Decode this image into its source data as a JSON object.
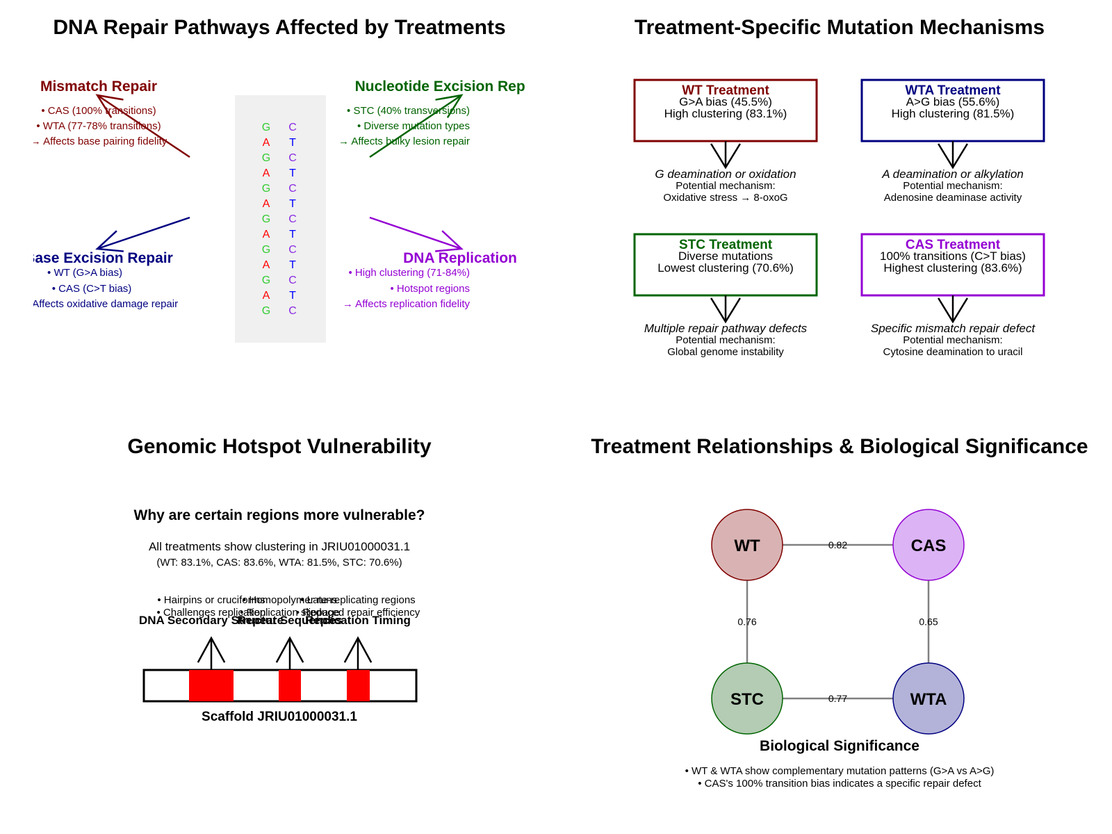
{
  "panel_tl": {
    "title": "DNA Repair Pathways Affected by Treatments",
    "pathways": [
      {
        "name": "Mismatch Repair",
        "color": "#800000",
        "lines": [
          "• CAS (100% transitions)",
          "• WTA (77-78% transitions)",
          "→ Affects base pairing fidelity"
        ]
      },
      {
        "name": "Nucleotide Excision Repair",
        "color": "#006400",
        "lines": [
          "• STC (40% transversions)",
          "• Diverse mutation types",
          "→ Affects bulky lesion repair"
        ]
      },
      {
        "name": "Base Excision Repair",
        "color": "#000080",
        "lines": [
          "• WT (G>A bias)",
          "• CAS (C>T bias)",
          "→ Affects oxidative damage repair"
        ]
      },
      {
        "name": "DNA Replication",
        "color": "#9400D3",
        "lines": [
          "• High clustering (71-84%)",
          "• Hotspot regions",
          "→ Affects replication fidelity"
        ]
      }
    ],
    "dna_left": [
      "G",
      "A",
      "G",
      "A",
      "G",
      "A",
      "G",
      "A",
      "G",
      "A",
      "G",
      "A",
      "G"
    ],
    "dna_right": [
      "C",
      "T",
      "C",
      "T",
      "C",
      "T",
      "C",
      "T",
      "C",
      "T",
      "C",
      "T",
      "C"
    ],
    "colors": {
      "G": "#33cc33",
      "A": "#ff0000",
      "C": "#8a2be2",
      "T": "#0000ff",
      "panel_bg": "#f0f0f0"
    }
  },
  "panel_tr": {
    "title": "Treatment-Specific Mutation Mechanisms",
    "treatments": [
      {
        "name": "WT Treatment",
        "color": "#800000",
        "lines": [
          "G>A bias (45.5%)",
          "High clustering (83.1%)"
        ],
        "mech_title": "G deamination or oxidation",
        "mech_lines": [
          "Potential mechanism:",
          "Oxidative stress → 8-oxoG"
        ]
      },
      {
        "name": "WTA Treatment",
        "color": "#000080",
        "lines": [
          "A>G bias (55.6%)",
          "High clustering (81.5%)"
        ],
        "mech_title": "A deamination or alkylation",
        "mech_lines": [
          "Potential mechanism:",
          "Adenosine deaminase activity"
        ]
      },
      {
        "name": "STC Treatment",
        "color": "#006400",
        "lines": [
          "Diverse mutations",
          "Lowest clustering (70.6%)"
        ],
        "mech_title": "Multiple repair pathway defects",
        "mech_lines": [
          "Potential mechanism:",
          "Global genome instability"
        ]
      },
      {
        "name": "CAS Treatment",
        "color": "#9400D3",
        "lines": [
          "100% transitions (C>T bias)",
          "Highest clustering (83.6%)"
        ],
        "mech_title": "Specific mismatch repair defect",
        "mech_lines": [
          "Potential mechanism:",
          "Cytosine deamination to uracil"
        ]
      }
    ]
  },
  "panel_bl": {
    "title": "Genomic Hotspot Vulnerability",
    "question": "Why are certain regions more vulnerable?",
    "statement": "All treatments show clustering in JRIU01000031.1",
    "percentages": "(WT: 83.1%, CAS: 83.6%, WTA: 81.5%, STC: 70.6%)",
    "hotspots": [
      {
        "label": "DNA Secondary Structure",
        "lines": [
          "• Hairpins or cruciforms",
          "• Challenges replication"
        ]
      },
      {
        "label": "Repeat Sequences",
        "lines": [
          "• Homopolymer runs",
          "• Replication slippage"
        ]
      },
      {
        "label": "Replication Timing",
        "lines": [
          "• Late-replicating regions",
          "• Reduced repair efficiency"
        ]
      }
    ],
    "scaffold_label": "Scaffold JRIU01000031.1",
    "hotspot_color": "#ff0000"
  },
  "panel_br": {
    "title": "Treatment Relationships & Biological Significance",
    "nodes": [
      {
        "id": "WT",
        "fill": "#d9b3b3",
        "stroke": "#800000"
      },
      {
        "id": "CAS",
        "fill": "#dcb3f5",
        "stroke": "#9400D3"
      },
      {
        "id": "STC",
        "fill": "#b3ccb3",
        "stroke": "#006400"
      },
      {
        "id": "WTA",
        "fill": "#b3b3d9",
        "stroke": "#000080"
      }
    ],
    "edges": [
      {
        "from": "WT",
        "to": "CAS",
        "weight": "0.82"
      },
      {
        "from": "WT",
        "to": "STC",
        "weight": "0.76"
      },
      {
        "from": "CAS",
        "to": "WTA",
        "weight": "0.65"
      },
      {
        "from": "STC",
        "to": "WTA",
        "weight": "0.77"
      }
    ],
    "significance_title": "Biological Significance",
    "significance_lines": [
      "• WT & WTA show complementary mutation patterns (G>A vs A>G)",
      "• CAS's 100% transition bias indicates a specific repair defect"
    ]
  }
}
